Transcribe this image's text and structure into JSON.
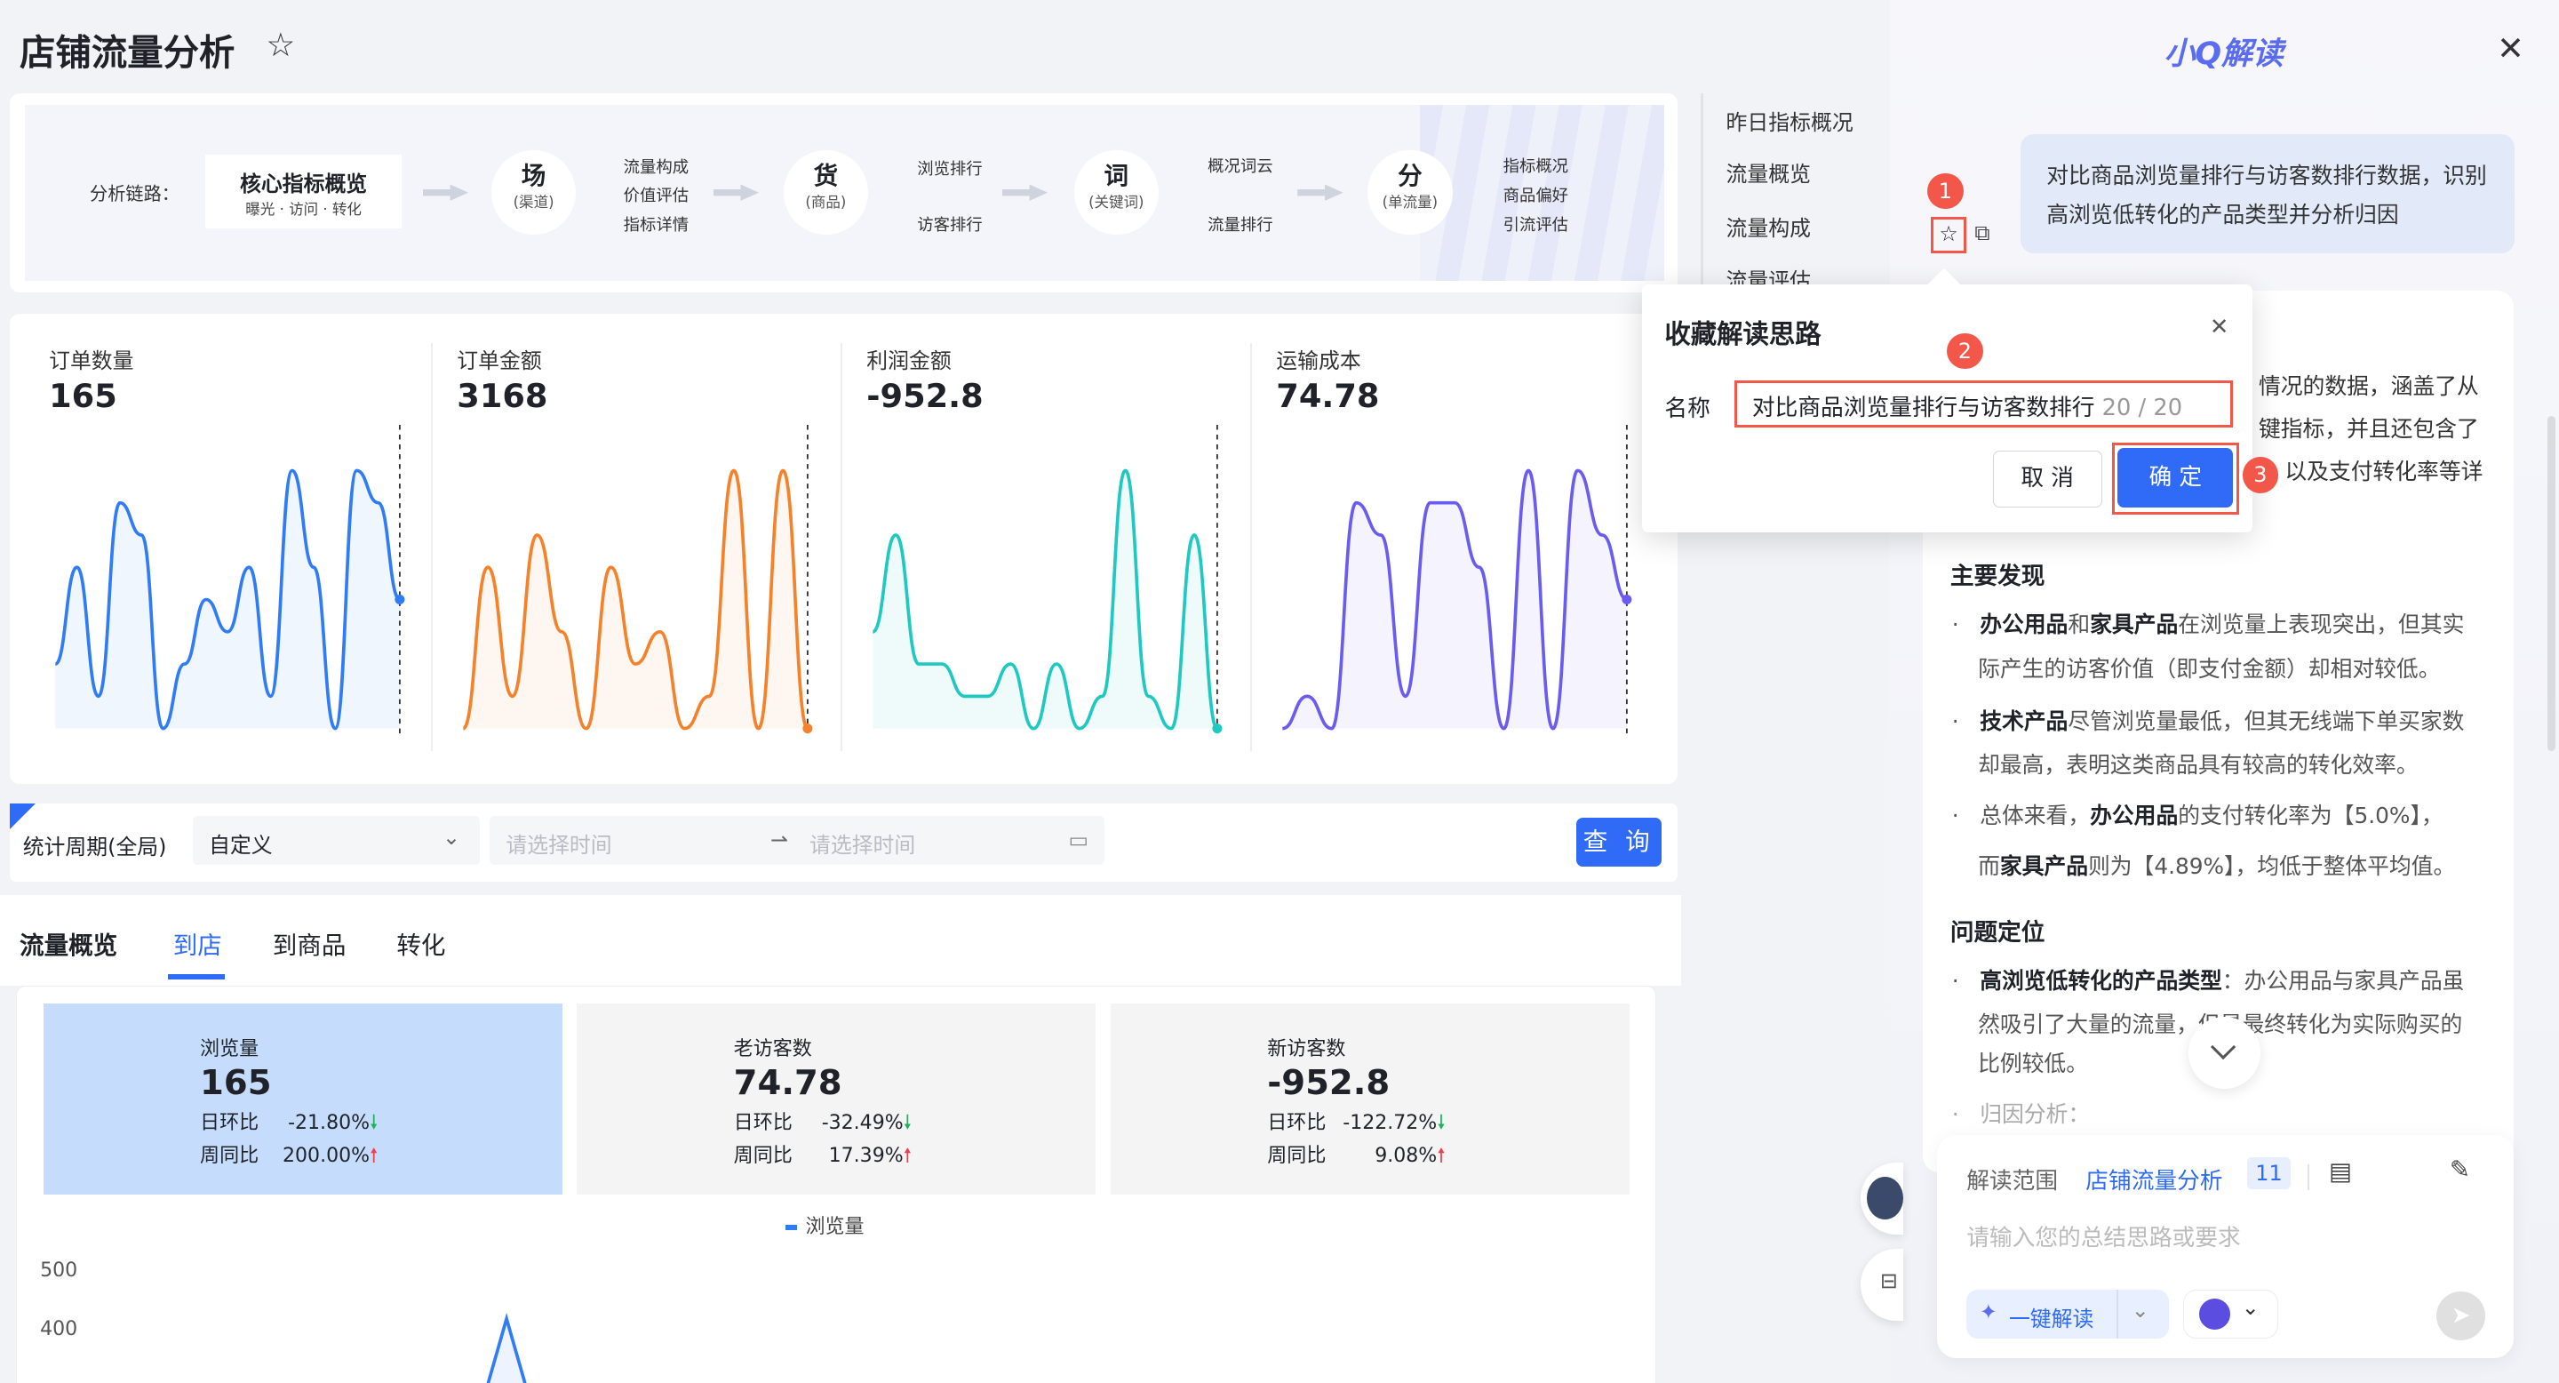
{
  "page": {
    "title": "店铺流量分析",
    "favorite_icon": "star-icon"
  },
  "flow": {
    "label": "分析链路：",
    "core": {
      "title": "核心指标概览",
      "sub": "曝光 · 访问 · 转化"
    },
    "nodes": [
      {
        "main": "场",
        "sub": "(渠道)",
        "items": [
          "流量构成",
          "价值评估",
          "指标详情"
        ]
      },
      {
        "main": "货",
        "sub": "(商品)",
        "items": [
          "浏览排行",
          "访客排行"
        ]
      },
      {
        "main": "词",
        "sub": "(关键词)",
        "items": [
          "概况词云",
          "流量排行"
        ]
      },
      {
        "main": "分",
        "sub": "(单流量)",
        "items": [
          "指标概况",
          "商品偏好",
          "引流评估"
        ]
      }
    ]
  },
  "mininav": [
    "昨日指标概况",
    "流量概览",
    "流量构成",
    "流量评估"
  ],
  "metrics": [
    {
      "label": "订单数量",
      "value": "165",
      "color": "#2f7cf6",
      "trend": [
        3,
        6,
        2,
        8,
        7,
        1,
        3,
        5,
        4,
        6,
        2,
        9,
        6,
        1,
        9,
        8,
        5
      ]
    },
    {
      "label": "订单金额",
      "value": "3168",
      "color": "#f5822a",
      "trend": [
        1,
        6,
        2,
        7,
        4,
        1,
        6,
        3,
        4,
        1,
        2,
        9,
        1,
        9,
        1
      ]
    },
    {
      "label": "利润金额",
      "value": "-952.8",
      "color": "#1ec9c0",
      "trend": [
        4,
        7,
        3,
        3,
        2,
        2,
        3,
        1,
        3,
        1,
        2,
        9,
        2,
        1,
        7,
        1
      ]
    },
    {
      "label": "运输成本",
      "value": "74.78",
      "color": "#6a5cf0",
      "trend": [
        1,
        2,
        1,
        8,
        7,
        2,
        8,
        8,
        6,
        1,
        9,
        1,
        9,
        7,
        5
      ]
    }
  ],
  "filter": {
    "label": "统计周期(全局)",
    "select": "自定义",
    "start_placeholder": "请选择时间",
    "end_placeholder": "请选择时间",
    "query": "查 询"
  },
  "tabs": [
    {
      "label": "流量概览",
      "active": false
    },
    {
      "label": "到店",
      "active": true
    },
    {
      "label": "到商品",
      "active": false
    },
    {
      "label": "转化",
      "active": false
    }
  ],
  "kpis": [
    {
      "label": "浏览量",
      "value": "165",
      "day_label": "日环比",
      "day": "-21.80%",
      "day_dir": "down",
      "week_label": "周同比",
      "week": "200.00%",
      "week_dir": "up",
      "selected": true
    },
    {
      "label": "老访客数",
      "value": "74.78",
      "day_label": "日环比",
      "day": "-32.49%",
      "day_dir": "down",
      "week_label": "周同比",
      "week": "17.39%",
      "week_dir": "up",
      "selected": false
    },
    {
      "label": "新访客数",
      "value": "-952.8",
      "day_label": "日环比",
      "day": "-122.72%",
      "day_dir": "down",
      "week_label": "周同比",
      "week": "9.08%",
      "week_dir": "up",
      "selected": false
    }
  ],
  "chart_data": {
    "type": "line",
    "series": [
      {
        "name": "浏览量"
      }
    ],
    "yticks": [
      "500",
      "400"
    ],
    "color": "#2f7cf6"
  },
  "panel": {
    "title": "小Q解读",
    "bubble": "对比商品浏览量排行与访客数排行数据，识别高浏览低转化的产品类型并分析归因",
    "partial_lines": [
      "情况的数据，涵盖了从",
      "键指标，并且还包含了",
      "以及支付转化率等详"
    ],
    "section1": "主要发现",
    "bullets1": [
      {
        "bold1": "办公用品",
        "t1": "和",
        "bold2": "家具产品",
        "t2": "在浏览量上表现突出，但其实",
        "line2": "际产生的访客价值（即支付金额）却相对较低。"
      },
      {
        "bold1": "技术产品",
        "t1": "尽管浏览量最低，但其无线端下单买家数",
        "line2": "却最高，表明这类商品具有较高的转化效率。"
      },
      {
        "t0": "总体来看，",
        "bold1": "办公用品",
        "t1": "的支付转化率为【5.0%】，",
        "line2a": "而",
        "bold2": "家具产品",
        "line2b": "则为【4.89%】，均低于整体平均值。"
      }
    ],
    "section2": "问题定位",
    "bullets2": [
      {
        "bold1": "高浏览低转化的产品类型",
        "t1": "：办公用品与家具产品虽",
        "line2": "然吸引了大量的流量，但是最终转化为实际购买的",
        "line3": "比例较低。"
      }
    ],
    "bullet3": "归因分析：",
    "input": {
      "scope_label": "解读范围",
      "scope_value": "店铺流量分析",
      "scope_count": "11",
      "placeholder": "请输入您的总结思路或要求",
      "one_click": "一键解读"
    }
  },
  "dialog": {
    "title": "收藏解读思路",
    "name_label": "名称",
    "name_value": "对比商品浏览量排行与访客数排行",
    "counter": "20 / 20",
    "cancel": "取 消",
    "confirm": "确 定"
  },
  "steps": [
    "1",
    "2",
    "3"
  ],
  "colors": {
    "primary": "#2f6bf6",
    "annotation": "#f2574a",
    "selected_tile": "#c5dcfd"
  }
}
